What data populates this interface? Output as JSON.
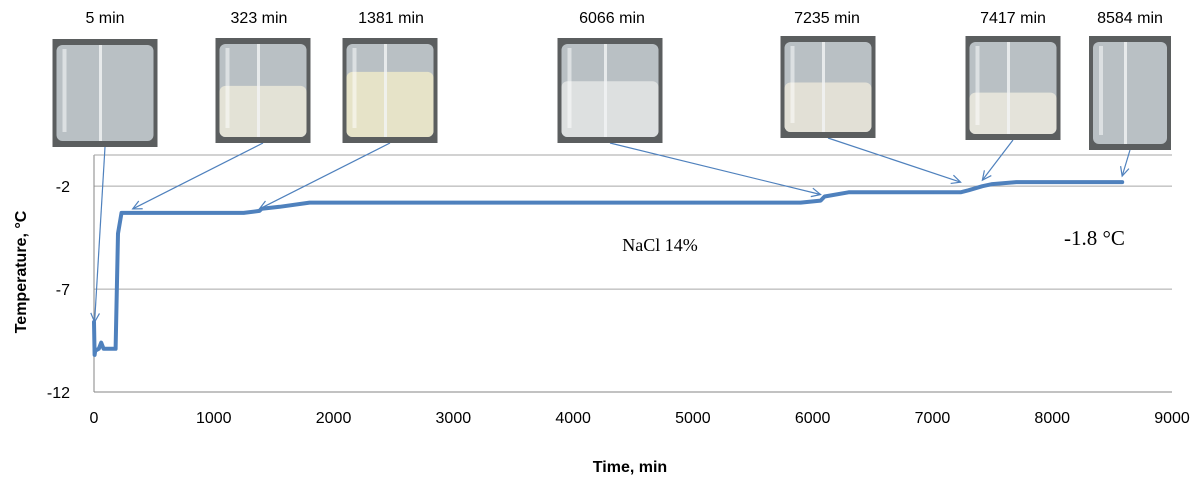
{
  "chart_data": {
    "type": "line",
    "xlabel": "Time, min",
    "ylabel": "Temperature, °C",
    "xlim": [
      0,
      9000
    ],
    "ylim": [
      -12,
      0
    ],
    "x_ticks": [
      "0",
      "1000",
      "2000",
      "3000",
      "4000",
      "5000",
      "6000",
      "7000",
      "8000",
      "9000"
    ],
    "y_ticks": [
      "-2",
      "-7",
      "-12"
    ],
    "grid": true,
    "legend": "none",
    "series": [
      {
        "color": "#4F81BD",
        "x": [
          0,
          5,
          10,
          40,
          60,
          80,
          130,
          180,
          200,
          230,
          500,
          1000,
          1250,
          1381,
          1400,
          1550,
          1800,
          2500,
          3000,
          4000,
          5000,
          5900,
          6066,
          6100,
          6300,
          7000,
          7235,
          7300,
          7417,
          7500,
          7700,
          8000,
          8584
        ],
        "y": [
          -8.6,
          -10.2,
          -10.0,
          -9.9,
          -9.6,
          -9.9,
          -9.9,
          -9.9,
          -4.3,
          -3.3,
          -3.3,
          -3.3,
          -3.3,
          -3.2,
          -3.1,
          -3.0,
          -2.8,
          -2.8,
          -2.8,
          -2.8,
          -2.8,
          -2.8,
          -2.7,
          -2.5,
          -2.3,
          -2.3,
          -2.3,
          -2.2,
          -2.0,
          -1.9,
          -1.8,
          -1.8,
          -1.8
        ]
      }
    ],
    "annotations": [
      {
        "text": "NaCl 14%",
        "x": 4750,
        "y": -4.0
      },
      {
        "text": "-1.8 °C",
        "x": 8600,
        "y": -3.8
      }
    ],
    "photos": [
      {
        "label": "5 min",
        "time": 5,
        "target_y": -8.8
      },
      {
        "label": "323 min",
        "time": 323,
        "target_y": -3.3
      },
      {
        "label": "1381 min",
        "time": 1381,
        "target_y": -3.3
      },
      {
        "label": "6066 min",
        "time": 6066,
        "target_y": -2.6
      },
      {
        "label": "7235 min",
        "time": 7235,
        "target_y": -2.0
      },
      {
        "label": "7417 min",
        "time": 7417,
        "target_y": -1.9
      },
      {
        "label": "8584 min",
        "time": 8584,
        "target_y": -1.7
      }
    ]
  }
}
